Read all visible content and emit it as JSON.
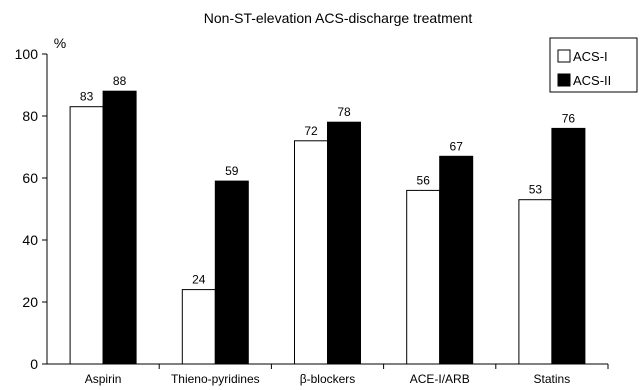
{
  "chart_data": {
    "type": "bar",
    "title": "Non-ST-elevation ACS-discharge treatment",
    "ylabel": "%",
    "xlabel": "",
    "ylim": [
      0,
      100
    ],
    "yticks": [
      0,
      20,
      40,
      60,
      80,
      100
    ],
    "grid": false,
    "legend_position": "top-right",
    "categories": [
      "Aspirin",
      "Thieno-pyridines",
      "β-blockers",
      "ACE-I/ARB",
      "Statins"
    ],
    "series": [
      {
        "name": "ACS-I",
        "values": [
          83,
          24,
          72,
          56,
          53
        ],
        "color": "#ffffff"
      },
      {
        "name": "ACS-II",
        "values": [
          88,
          59,
          78,
          67,
          76
        ],
        "color": "#000000"
      }
    ]
  }
}
